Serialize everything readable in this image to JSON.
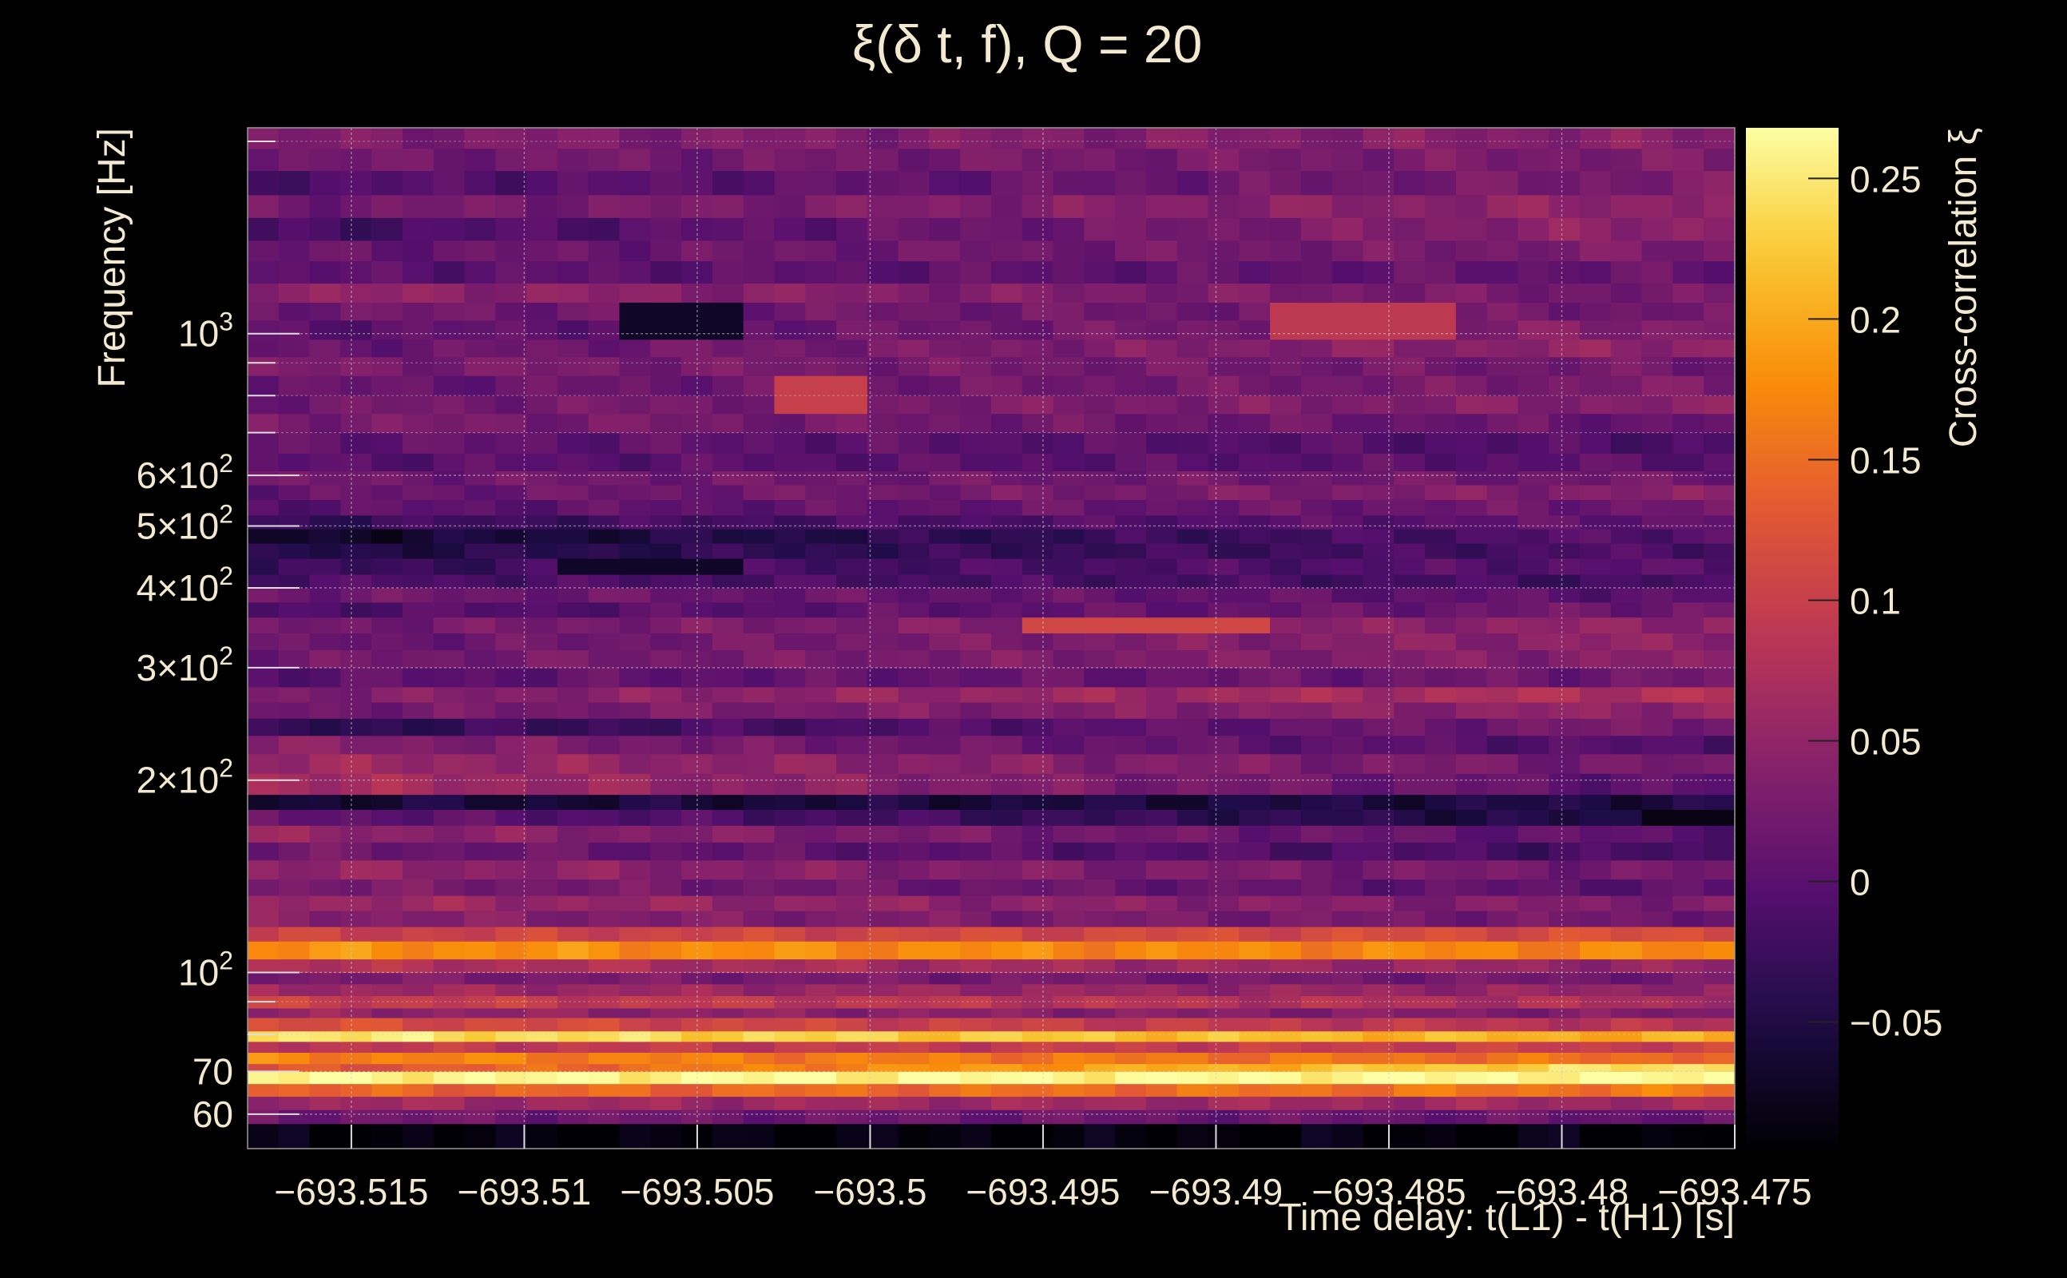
{
  "chart_data": {
    "type": "heatmap",
    "title": "ξ(δ t, f), Q = 20",
    "xlabel": "Time delay: t(L1) - t(H1) [s]",
    "ylabel": "Frequency [Hz]",
    "colorbar_label": "Cross-correlation ξ",
    "colormap": "inferno",
    "x_range": [
      -693.518,
      -693.475
    ],
    "y_range": [
      53,
      2100
    ],
    "y_scale": "log",
    "z_range": [
      -0.095,
      0.268
    ],
    "grid": true,
    "x_ticks": [
      {
        "value": -693.515,
        "label": "−693.515"
      },
      {
        "value": -693.51,
        "label": "−693.51"
      },
      {
        "value": -693.505,
        "label": "−693.505"
      },
      {
        "value": -693.5,
        "label": "−693.5"
      },
      {
        "value": -693.495,
        "label": "−693.495"
      },
      {
        "value": -693.49,
        "label": "−693.49"
      },
      {
        "value": -693.485,
        "label": "−693.485"
      },
      {
        "value": -693.48,
        "label": "−693.48"
      },
      {
        "value": -693.475,
        "label": "−693.475"
      }
    ],
    "y_ticks": [
      {
        "value": 60,
        "base": "60",
        "exp": ""
      },
      {
        "value": 70,
        "base": "70",
        "exp": ""
      },
      {
        "value": 100,
        "base": "10",
        "exp": "2"
      },
      {
        "value": 200,
        "base": "2×10",
        "exp": "2"
      },
      {
        "value": 300,
        "base": "3×10",
        "exp": "2"
      },
      {
        "value": 400,
        "base": "4×10",
        "exp": "2"
      },
      {
        "value": 500,
        "base": "5×10",
        "exp": "2"
      },
      {
        "value": 600,
        "base": "6×10",
        "exp": "2"
      },
      {
        "value": 1000,
        "base": "10",
        "exp": "3"
      }
    ],
    "y_minor_ticks": [
      80,
      90,
      700,
      800,
      900,
      2000
    ],
    "colorbar_ticks": [
      {
        "value": -0.05,
        "label": "−0.05"
      },
      {
        "value": 0,
        "label": "0"
      },
      {
        "value": 0.05,
        "label": "0.05"
      },
      {
        "value": 0.1,
        "label": "0.1"
      },
      {
        "value": 0.15,
        "label": "0.15"
      },
      {
        "value": 0.2,
        "label": "0.2"
      },
      {
        "value": 0.25,
        "label": "0.25"
      }
    ],
    "bands": [
      {
        "f_low": 53,
        "f_high": 58,
        "start": -0.09,
        "end": -0.09
      },
      {
        "f_low": 58,
        "f_high": 61,
        "start": 0.02,
        "end": 0.01
      },
      {
        "f_low": 61,
        "f_high": 64,
        "start": 0.06,
        "end": 0.06
      },
      {
        "f_low": 64,
        "f_high": 67,
        "start": 0.14,
        "end": 0.16
      },
      {
        "f_low": 67,
        "f_high": 70,
        "start": 0.26,
        "end": 0.265
      },
      {
        "f_low": 70,
        "f_high": 72,
        "start": 0.12,
        "end": 0.25
      },
      {
        "f_low": 72,
        "f_high": 75,
        "start": 0.17,
        "end": 0.15
      },
      {
        "f_low": 75,
        "f_high": 78,
        "start": 0.09,
        "end": 0.1
      },
      {
        "f_low": 78,
        "f_high": 81,
        "start": 0.25,
        "end": 0.2
      },
      {
        "f_low": 81,
        "f_high": 85,
        "start": 0.12,
        "end": 0.08
      },
      {
        "f_low": 85,
        "f_high": 88,
        "start": 0.05,
        "end": 0.03
      },
      {
        "f_low": 88,
        "f_high": 92,
        "start": 0.1,
        "end": 0.07
      },
      {
        "f_low": 92,
        "f_high": 96,
        "start": 0.06,
        "end": 0.05
      },
      {
        "f_low": 96,
        "f_high": 100,
        "start": 0.03,
        "end": 0.02
      },
      {
        "f_low": 100,
        "f_high": 105,
        "start": 0.08,
        "end": 0.05
      },
      {
        "f_low": 105,
        "f_high": 112,
        "start": 0.18,
        "end": 0.17
      },
      {
        "f_low": 112,
        "f_high": 118,
        "start": 0.1,
        "end": 0.12
      },
      {
        "f_low": 118,
        "f_high": 125,
        "start": 0.04,
        "end": 0.02
      },
      {
        "f_low": 125,
        "f_high": 132,
        "start": 0.06,
        "end": 0.03
      },
      {
        "f_low": 132,
        "f_high": 140,
        "start": 0.03,
        "end": 0.0
      },
      {
        "f_low": 140,
        "f_high": 150,
        "start": 0.05,
        "end": 0.02
      },
      {
        "f_low": 150,
        "f_high": 160,
        "start": 0.02,
        "end": -0.02
      },
      {
        "f_low": 160,
        "f_high": 170,
        "start": 0.05,
        "end": 0.0
      },
      {
        "f_low": 170,
        "f_high": 180,
        "start": 0.01,
        "end": -0.06
      },
      {
        "f_low": 180,
        "f_high": 190,
        "start": -0.06,
        "end": -0.05
      },
      {
        "f_low": 190,
        "f_high": 205,
        "start": 0.07,
        "end": 0.0
      },
      {
        "f_low": 205,
        "f_high": 220,
        "start": 0.06,
        "end": 0.02
      },
      {
        "f_low": 220,
        "f_high": 235,
        "start": 0.04,
        "end": -0.01
      },
      {
        "f_low": 235,
        "f_high": 250,
        "start": -0.04,
        "end": 0.03
      },
      {
        "f_low": 250,
        "f_high": 265,
        "start": 0.02,
        "end": 0.05
      },
      {
        "f_low": 265,
        "f_high": 280,
        "start": 0.03,
        "end": 0.08
      },
      {
        "f_low": 280,
        "f_high": 300,
        "start": 0.0,
        "end": 0.02
      },
      {
        "f_low": 300,
        "f_high": 320,
        "start": 0.02,
        "end": 0.04
      },
      {
        "f_low": 320,
        "f_high": 340,
        "start": 0.01,
        "end": 0.05
      },
      {
        "f_low": 340,
        "f_high": 360,
        "start": 0.02,
        "end": 0.05
      },
      {
        "f_low": 360,
        "f_high": 380,
        "start": -0.01,
        "end": 0.02
      },
      {
        "f_low": 380,
        "f_high": 400,
        "start": 0.02,
        "end": 0.0
      },
      {
        "f_low": 400,
        "f_high": 420,
        "start": -0.01,
        "end": -0.02
      },
      {
        "f_low": 420,
        "f_high": 445,
        "start": -0.03,
        "end": 0.0
      },
      {
        "f_low": 445,
        "f_high": 470,
        "start": -0.05,
        "end": -0.01
      },
      {
        "f_low": 470,
        "f_high": 495,
        "start": -0.07,
        "end": 0.0
      },
      {
        "f_low": 495,
        "f_high": 520,
        "start": -0.03,
        "end": 0.01
      },
      {
        "f_low": 520,
        "f_high": 550,
        "start": 0.0,
        "end": 0.02
      },
      {
        "f_low": 550,
        "f_high": 580,
        "start": 0.01,
        "end": 0.04
      },
      {
        "f_low": 580,
        "f_high": 610,
        "start": 0.02,
        "end": 0.02
      },
      {
        "f_low": 610,
        "f_high": 650,
        "start": 0.0,
        "end": 0.0
      },
      {
        "f_low": 650,
        "f_high": 700,
        "start": 0.01,
        "end": -0.01
      },
      {
        "f_low": 700,
        "f_high": 750,
        "start": 0.03,
        "end": 0.01
      },
      {
        "f_low": 750,
        "f_high": 800,
        "start": 0.02,
        "end": 0.04
      },
      {
        "f_low": 800,
        "f_high": 860,
        "start": 0.01,
        "end": 0.03
      },
      {
        "f_low": 860,
        "f_high": 920,
        "start": 0.03,
        "end": 0.02
      },
      {
        "f_low": 920,
        "f_high": 980,
        "start": 0.01,
        "end": 0.05
      },
      {
        "f_low": 980,
        "f_high": 1050,
        "start": 0.0,
        "end": 0.04
      },
      {
        "f_low": 1050,
        "f_high": 1120,
        "start": 0.02,
        "end": 0.02
      },
      {
        "f_low": 1120,
        "f_high": 1200,
        "start": 0.05,
        "end": 0.02
      },
      {
        "f_low": 1200,
        "f_high": 1300,
        "start": 0.0,
        "end": 0.01
      },
      {
        "f_low": 1300,
        "f_high": 1400,
        "start": 0.01,
        "end": 0.03
      },
      {
        "f_low": 1400,
        "f_high": 1520,
        "start": -0.02,
        "end": 0.05
      },
      {
        "f_low": 1520,
        "f_high": 1650,
        "start": 0.02,
        "end": 0.05
      },
      {
        "f_low": 1650,
        "f_high": 1800,
        "start": -0.01,
        "end": 0.03
      },
      {
        "f_low": 1800,
        "f_high": 1950,
        "start": 0.02,
        "end": 0.03
      },
      {
        "f_low": 1950,
        "f_high": 2100,
        "start": 0.03,
        "end": 0.04
      }
    ],
    "features": [
      {
        "t_low": -693.503,
        "t_high": -693.5,
        "f_low": 760,
        "f_high": 810,
        "value": 0.1
      },
      {
        "t_low": -693.496,
        "t_high": -693.488,
        "f_low": 340,
        "f_high": 360,
        "value": 0.11
      },
      {
        "t_low": -693.488,
        "t_high": -693.483,
        "f_low": 1000,
        "f_high": 1060,
        "value": 0.09
      },
      {
        "t_low": -693.507,
        "t_high": -693.504,
        "f_low": 1020,
        "f_high": 1080,
        "value": -0.07
      },
      {
        "t_low": -693.509,
        "t_high": -693.504,
        "f_low": 420,
        "f_high": 445,
        "value": -0.07
      },
      {
        "t_low": -693.478,
        "t_high": -693.475,
        "f_low": 170,
        "f_high": 180,
        "value": -0.085
      }
    ]
  }
}
